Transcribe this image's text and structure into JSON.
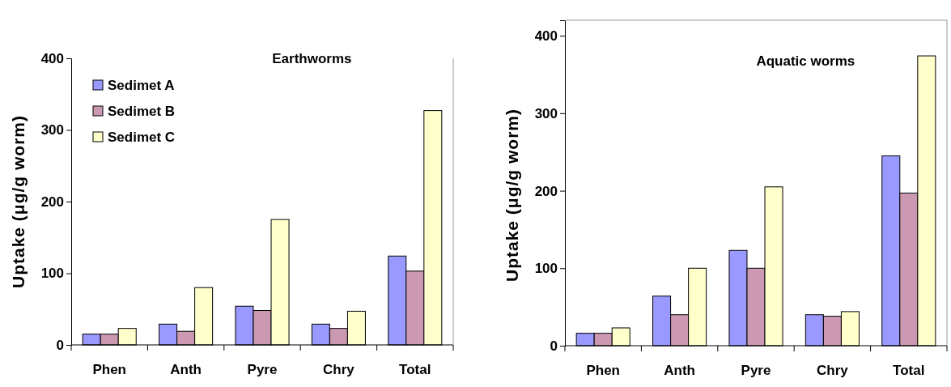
{
  "chart_data": [
    {
      "type": "bar",
      "title": "Earthworms",
      "ylabel": "Uptake (μg/g worm)",
      "categories": [
        "Phen",
        "Anth",
        "Pyre",
        "Chry",
        "Total"
      ],
      "ylim": [
        0,
        400
      ],
      "yticks": [
        0,
        100,
        200,
        300,
        400
      ],
      "grid": false,
      "legend": "top left",
      "series": [
        {
          "name": "Sedimet A",
          "color": "#9999ff",
          "values": [
            15,
            29,
            54,
            29,
            124
          ]
        },
        {
          "name": "Sedimet B",
          "color": "#cc99b3",
          "values": [
            15,
            19,
            48,
            23,
            103
          ]
        },
        {
          "name": "Sedimet C",
          "color": "#ffffcc",
          "values": [
            23,
            80,
            175,
            47,
            327
          ]
        }
      ]
    },
    {
      "type": "bar",
      "title": "Aquatic worms",
      "ylabel": "Uptake (μg/g worm)",
      "categories": [
        "Phen",
        "Anth",
        "Pyre",
        "Chry",
        "Total"
      ],
      "ylim": [
        0,
        420
      ],
      "yticks": [
        0,
        100,
        200,
        300,
        400
      ],
      "grid": false,
      "legend": false,
      "series": [
        {
          "color": "#9999ff",
          "values": [
            16,
            64,
            123,
            40,
            245
          ]
        },
        {
          "color": "#cc99b3",
          "values": [
            16,
            40,
            100,
            38,
            197
          ]
        },
        {
          "color": "#ffffcc",
          "values": [
            23,
            100,
            205,
            44,
            374
          ]
        }
      ]
    }
  ]
}
